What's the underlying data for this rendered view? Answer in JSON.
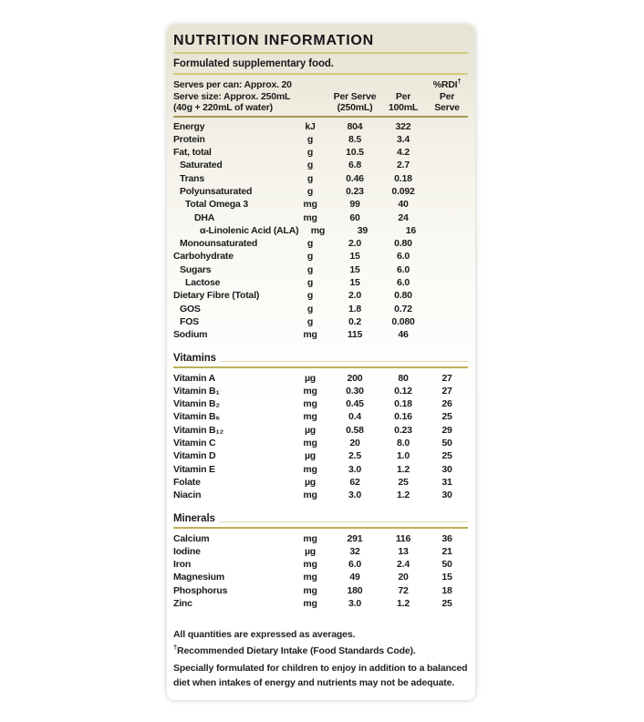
{
  "colors": {
    "card_background": "#e7e3d4",
    "rule_pale": "#d3cc7d",
    "rule_dark": "#a59b4b",
    "rule_gold": "#bfae58"
  },
  "panel": {
    "title": "NUTRITION INFORMATION",
    "subtitle": "Formulated supplementary food.",
    "serving": {
      "line1": "Serves per can: Approx. 20",
      "line2": "Serve size: Approx. 250mL",
      "line3": "(40g + 220mL of water)"
    },
    "columns": {
      "serve_l1": "Per Serve",
      "serve_l2": "(250mL)",
      "p100_l1": "Per",
      "p100_l2": "100mL",
      "rdi_l1": "%RDI",
      "rdi_dagger": "†",
      "rdi_l2": "Per",
      "rdi_l3": "Serve"
    }
  },
  "sections": {
    "main": {
      "rows": [
        {
          "label": "Energy",
          "unit": "kJ",
          "per_serve": "804",
          "per_100ml": "322",
          "rdi": "",
          "indent": 0
        },
        {
          "label": "Protein",
          "unit": "g",
          "per_serve": "8.5",
          "per_100ml": "3.4",
          "rdi": "",
          "indent": 0
        },
        {
          "label": "Fat, total",
          "unit": "g",
          "per_serve": "10.5",
          "per_100ml": "4.2",
          "rdi": "",
          "indent": 0
        },
        {
          "label": "Saturated",
          "unit": "g",
          "per_serve": "6.8",
          "per_100ml": "2.7",
          "rdi": "",
          "indent": 1
        },
        {
          "label": "Trans",
          "unit": "g",
          "per_serve": "0.46",
          "per_100ml": "0.18",
          "rdi": "",
          "indent": 1
        },
        {
          "label": "Polyunsaturated",
          "unit": "g",
          "per_serve": "0.23",
          "per_100ml": "0.092",
          "rdi": "",
          "indent": 1
        },
        {
          "label": "Total Omega 3",
          "unit": "mg",
          "per_serve": "99",
          "per_100ml": "40",
          "rdi": "",
          "indent": 2
        },
        {
          "label": "DHA",
          "unit": "mg",
          "per_serve": "60",
          "per_100ml": "24",
          "rdi": "",
          "indent": 3
        },
        {
          "label": "α-Linolenic Acid (ALA)",
          "unit": "mg",
          "per_serve": "39",
          "per_100ml": "16",
          "rdi": "",
          "indent": 4
        },
        {
          "label": "Monounsaturated",
          "unit": "g",
          "per_serve": "2.0",
          "per_100ml": "0.80",
          "rdi": "",
          "indent": 1
        },
        {
          "label": "Carbohydrate",
          "unit": "g",
          "per_serve": "15",
          "per_100ml": "6.0",
          "rdi": "",
          "indent": 0
        },
        {
          "label": "Sugars",
          "unit": "g",
          "per_serve": "15",
          "per_100ml": "6.0",
          "rdi": "",
          "indent": 1
        },
        {
          "label": "Lactose",
          "unit": "g",
          "per_serve": "15",
          "per_100ml": "6.0",
          "rdi": "",
          "indent": 2
        },
        {
          "label": "Dietary Fibre (Total)",
          "unit": "g",
          "per_serve": "2.0",
          "per_100ml": "0.80",
          "rdi": "",
          "indent": 0
        },
        {
          "label": "GOS",
          "unit": "g",
          "per_serve": "1.8",
          "per_100ml": "0.72",
          "rdi": "",
          "indent": 1
        },
        {
          "label": "FOS",
          "unit": "g",
          "per_serve": "0.2",
          "per_100ml": "0.080",
          "rdi": "",
          "indent": 1
        },
        {
          "label": "Sodium",
          "unit": "mg",
          "per_serve": "115",
          "per_100ml": "46",
          "rdi": "",
          "indent": 0
        }
      ]
    },
    "vitamins": {
      "heading": "Vitamins",
      "rows": [
        {
          "label": "Vitamin A",
          "unit": "µg",
          "per_serve": "200",
          "per_100ml": "80",
          "rdi": "27",
          "indent": 0
        },
        {
          "label": "Vitamin B₁",
          "unit": "mg",
          "per_serve": "0.30",
          "per_100ml": "0.12",
          "rdi": "27",
          "indent": 0
        },
        {
          "label": "Vitamin B₂",
          "unit": "mg",
          "per_serve": "0.45",
          "per_100ml": "0.18",
          "rdi": "26",
          "indent": 0
        },
        {
          "label": "Vitamin B₆",
          "unit": "mg",
          "per_serve": "0.4",
          "per_100ml": "0.16",
          "rdi": "25",
          "indent": 0
        },
        {
          "label": "Vitamin B₁₂",
          "unit": "µg",
          "per_serve": "0.58",
          "per_100ml": "0.23",
          "rdi": "29",
          "indent": 0
        },
        {
          "label": "Vitamin C",
          "unit": "mg",
          "per_serve": "20",
          "per_100ml": "8.0",
          "rdi": "50",
          "indent": 0
        },
        {
          "label": "Vitamin D",
          "unit": "µg",
          "per_serve": "2.5",
          "per_100ml": "1.0",
          "rdi": "25",
          "indent": 0
        },
        {
          "label": "Vitamin E",
          "unit": "mg",
          "per_serve": "3.0",
          "per_100ml": "1.2",
          "rdi": "30",
          "indent": 0
        },
        {
          "label": "Folate",
          "unit": "µg",
          "per_serve": "62",
          "per_100ml": "25",
          "rdi": "31",
          "indent": 0
        },
        {
          "label": "Niacin",
          "unit": "mg",
          "per_serve": "3.0",
          "per_100ml": "1.2",
          "rdi": "30",
          "indent": 0
        }
      ]
    },
    "minerals": {
      "heading": "Minerals",
      "rows": [
        {
          "label": "Calcium",
          "unit": "mg",
          "per_serve": "291",
          "per_100ml": "116",
          "rdi": "36",
          "indent": 0
        },
        {
          "label": "Iodine",
          "unit": "µg",
          "per_serve": "32",
          "per_100ml": "13",
          "rdi": "21",
          "indent": 0
        },
        {
          "label": "Iron",
          "unit": "mg",
          "per_serve": "6.0",
          "per_100ml": "2.4",
          "rdi": "50",
          "indent": 0
        },
        {
          "label": "Magnesium",
          "unit": "mg",
          "per_serve": "49",
          "per_100ml": "20",
          "rdi": "15",
          "indent": 0
        },
        {
          "label": "Phosphorus",
          "unit": "mg",
          "per_serve": "180",
          "per_100ml": "72",
          "rdi": "18",
          "indent": 0
        },
        {
          "label": "Zinc",
          "unit": "mg",
          "per_serve": "3.0",
          "per_100ml": "1.2",
          "rdi": "25",
          "indent": 0
        }
      ]
    }
  },
  "footer": {
    "note1": "All quantities are expressed as averages.",
    "note2_dagger": "†",
    "note2": "Recommended Dietary Intake (Food Standards Code).",
    "note3": "Specially formulated for children to enjoy in addition to a balanced diet when intakes of energy and nutrients may not be adequate."
  }
}
